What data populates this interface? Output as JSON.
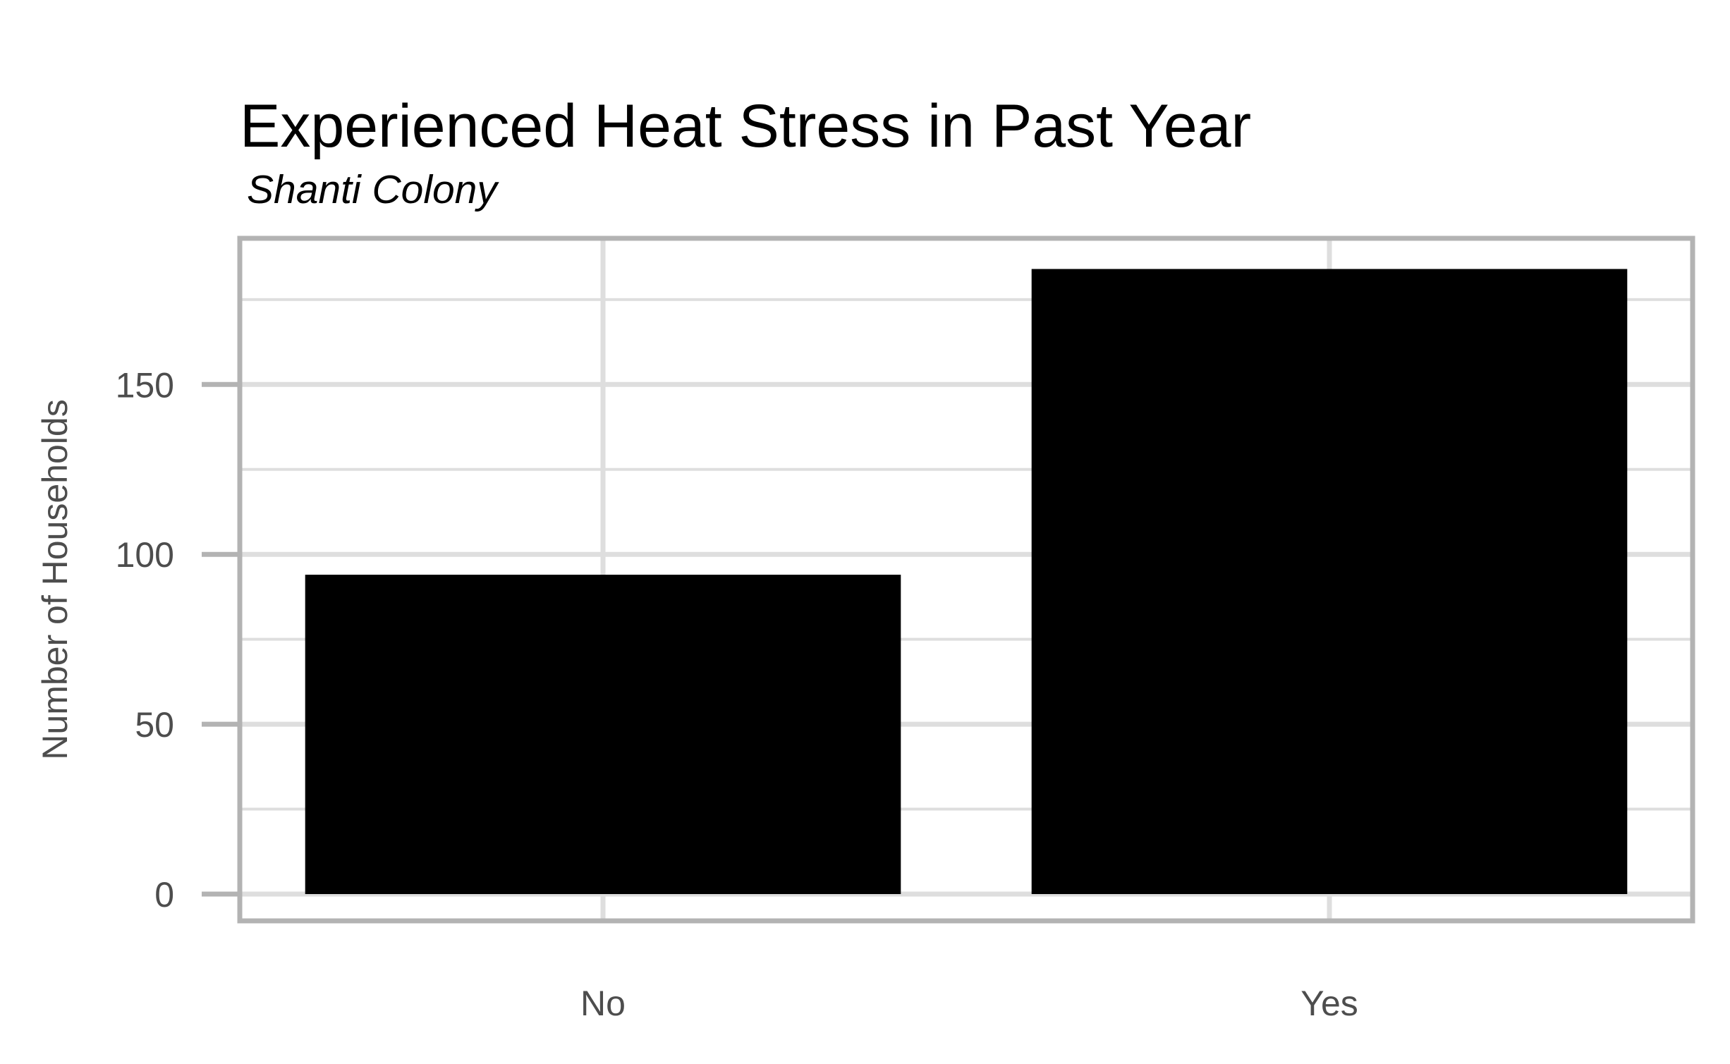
{
  "chart_data": {
    "type": "bar",
    "title": "Experienced Heat Stress in Past Year",
    "subtitle": "Shanti Colony",
    "xlabel": "",
    "ylabel": "Number of Households",
    "categories": [
      "No",
      "Yes"
    ],
    "values": [
      94,
      184
    ],
    "ylim": [
      0,
      193
    ],
    "yticks": [
      0,
      50,
      100,
      150
    ],
    "ytick_labels": [
      "0",
      "50",
      "100",
      "150"
    ],
    "grid": true,
    "legend": "none",
    "colors": {
      "bar": "#000000",
      "grid": "#dedede",
      "panel_border": "#b3b3b3",
      "tick_text": "#4d4d4d",
      "title_text": "#000000"
    }
  }
}
